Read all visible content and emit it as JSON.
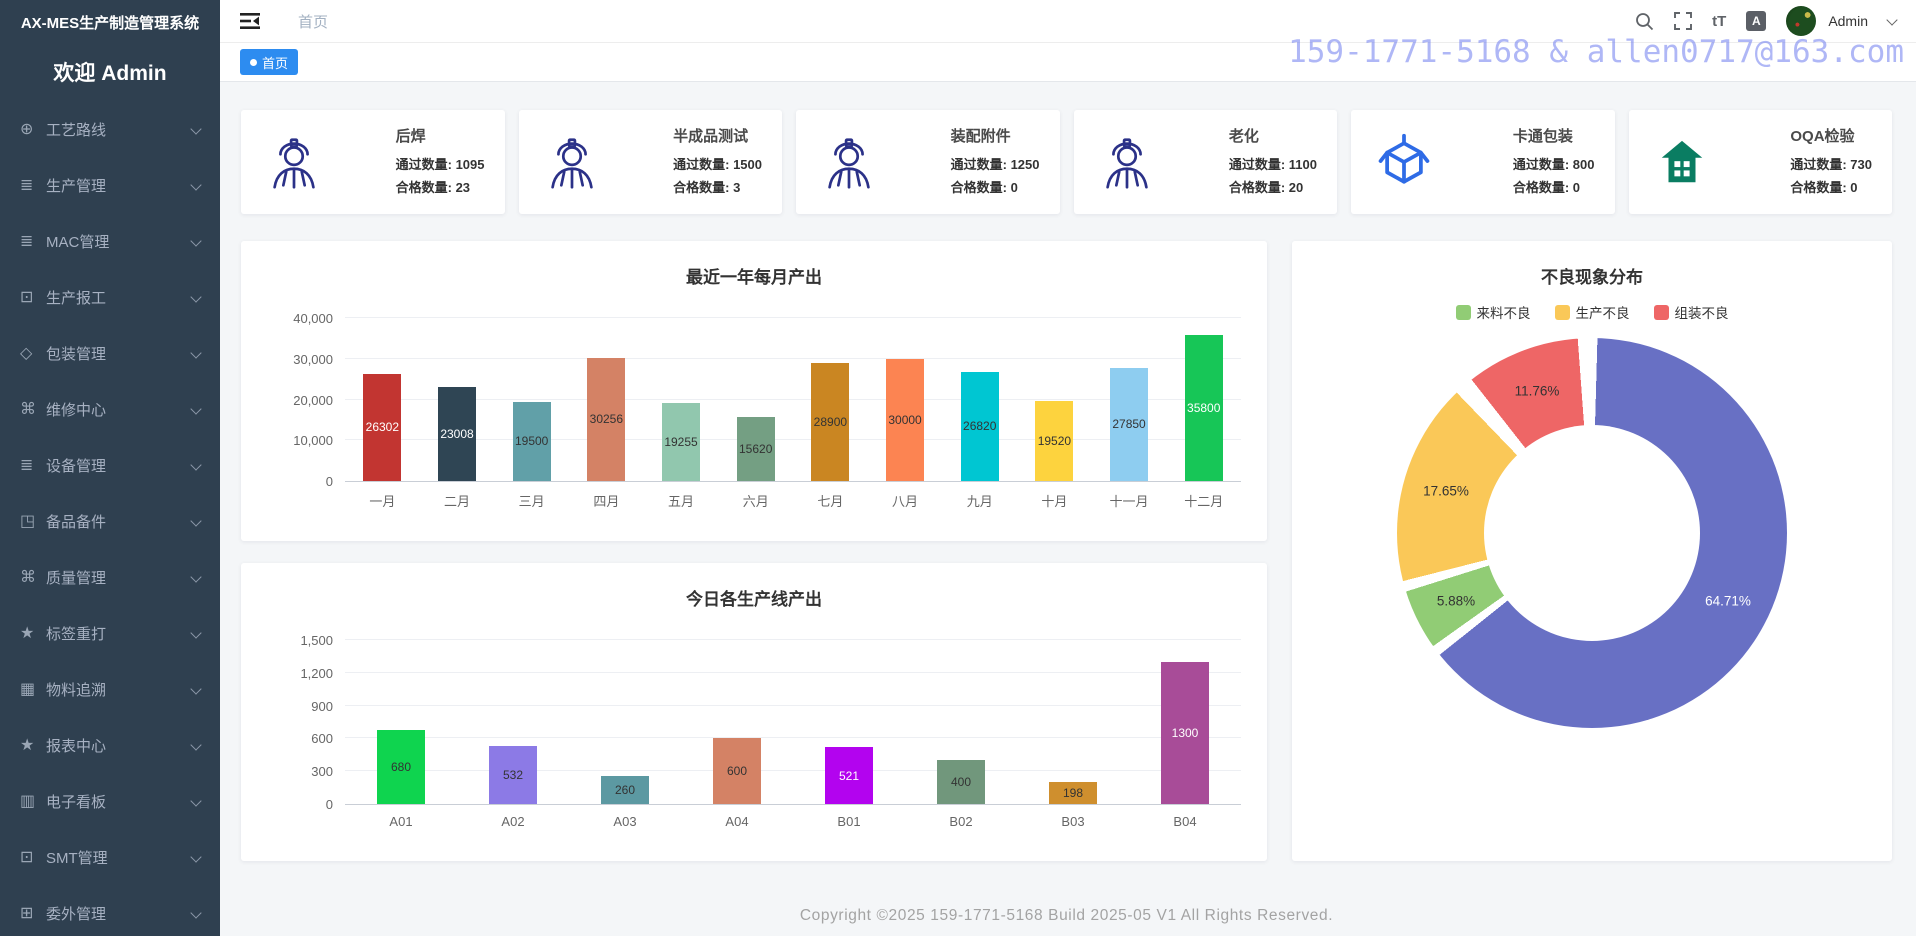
{
  "sidebar": {
    "title": "AX-MES生产制造管理系统",
    "welcome": "欢迎 Admin",
    "items": [
      {
        "id": "process-route",
        "label": "工艺路线",
        "glyph": "⊕"
      },
      {
        "id": "production-mgmt",
        "label": "生产管理",
        "glyph": "≣"
      },
      {
        "id": "mac-mgmt",
        "label": "MAC管理",
        "glyph": "≣"
      },
      {
        "id": "production-report",
        "label": "生产报工",
        "glyph": "⊡"
      },
      {
        "id": "packaging-mgmt",
        "label": "包装管理",
        "glyph": "◇"
      },
      {
        "id": "repair-center",
        "label": "维修中心",
        "glyph": "⌘"
      },
      {
        "id": "equipment-mgmt",
        "label": "设备管理",
        "glyph": "≣"
      },
      {
        "id": "spare-parts",
        "label": "备品备件",
        "glyph": "◳"
      },
      {
        "id": "quality-mgmt",
        "label": "质量管理",
        "glyph": "⌘"
      },
      {
        "id": "label-reprint",
        "label": "标签重打",
        "glyph": "★"
      },
      {
        "id": "material-trace",
        "label": "物料追溯",
        "glyph": "▦"
      },
      {
        "id": "report-center",
        "label": "报表中心",
        "glyph": "★"
      },
      {
        "id": "e-dashboard",
        "label": "电子看板",
        "glyph": "▥"
      },
      {
        "id": "smt-mgmt",
        "label": "SMT管理",
        "glyph": "⊡"
      },
      {
        "id": "outsourcing-mgmt",
        "label": "委外管理",
        "glyph": "⊞"
      }
    ]
  },
  "navbar": {
    "breadcrumb": "首页",
    "font_size_icon_glyph": "tT",
    "language_icon_glyph": "A",
    "user": "Admin"
  },
  "tabbar": {
    "active_tab": "首页"
  },
  "watermark": "159-1771-5168 & allen0717@163.com",
  "kpi_cards": [
    {
      "id": "houhan",
      "title": "后焊",
      "icon": "worker",
      "stats": [
        {
          "label": "通过数量",
          "value": "1095"
        },
        {
          "label": "合格数量",
          "value": "23"
        }
      ]
    },
    {
      "id": "semi-test",
      "title": "半成品测试",
      "icon": "worker",
      "stats": [
        {
          "label": "通过数量",
          "value": "1500"
        },
        {
          "label": "合格数量",
          "value": "3"
        }
      ]
    },
    {
      "id": "assembly",
      "title": "装配附件",
      "icon": "worker",
      "stats": [
        {
          "label": "通过数量",
          "value": "1250"
        },
        {
          "label": "合格数量",
          "value": "0"
        }
      ]
    },
    {
      "id": "aging",
      "title": "老化",
      "icon": "worker",
      "stats": [
        {
          "label": "通过数量",
          "value": "1100"
        },
        {
          "label": "合格数量",
          "value": "20"
        }
      ]
    },
    {
      "id": "carton-pack",
      "title": "卡通包装",
      "icon": "box",
      "stats": [
        {
          "label": "通过数量",
          "value": "800"
        },
        {
          "label": "合格数量",
          "value": "0"
        }
      ]
    },
    {
      "id": "oqa",
      "title": "OQA检验",
      "icon": "factory",
      "stats": [
        {
          "label": "通过数量",
          "value": "730"
        },
        {
          "label": "合格数量",
          "value": "0"
        }
      ]
    }
  ],
  "chart_data": [
    {
      "type": "bar",
      "title": "最近一年每月产出",
      "categories": [
        "一月",
        "二月",
        "三月",
        "四月",
        "五月",
        "六月",
        "七月",
        "八月",
        "九月",
        "十月",
        "十一月",
        "十二月"
      ],
      "values": [
        26302,
        23008,
        19500,
        30256,
        19255,
        15620,
        28900,
        30000,
        26820,
        19520,
        27850,
        35800
      ],
      "colors": [
        "#c23531",
        "#2f4554",
        "#61a0a8",
        "#d48265",
        "#91c7ae",
        "#749f83",
        "#ca8622",
        "#fc8452",
        "#00c6d2",
        "#fdd33e",
        "#8ecdf0",
        "#17c657"
      ],
      "label_colors": [
        "#ffffff",
        "#ffffff",
        "#333333",
        "#333333",
        "#333333",
        "#333333",
        "#333333",
        "#333333",
        "#333333",
        "#333333",
        "#333333",
        "#ffffff"
      ],
      "ylim": [
        0,
        40000
      ],
      "yticks": [
        {
          "value": 0,
          "label": "0"
        },
        {
          "value": 10000,
          "label": "10,000"
        },
        {
          "value": 20000,
          "label": "20,000"
        },
        {
          "value": 30000,
          "label": "30,000"
        },
        {
          "value": 40000,
          "label": "40,000"
        }
      ],
      "grid": true,
      "legend_position": "none"
    },
    {
      "type": "bar",
      "title": "今日各生产线产出",
      "categories": [
        "A01",
        "A02",
        "A03",
        "A04",
        "B01",
        "B02",
        "B03",
        "B04"
      ],
      "values": [
        680,
        532,
        260,
        600,
        521,
        400,
        198,
        1300
      ],
      "colors": [
        "#0fd44f",
        "#8c7ae6",
        "#5c99a2",
        "#d48265",
        "#b303ef",
        "#71977c",
        "#cf8f2e",
        "#a84c98"
      ],
      "label_colors": [
        "#333333",
        "#333333",
        "#333333",
        "#333333",
        "#ffffff",
        "#333333",
        "#333333",
        "#ffffff"
      ],
      "ylim": [
        0,
        1500
      ],
      "yticks": [
        {
          "value": 0,
          "label": "0"
        },
        {
          "value": 300,
          "label": "300"
        },
        {
          "value": 600,
          "label": "600"
        },
        {
          "value": 900,
          "label": "900"
        },
        {
          "value": 1200,
          "label": "1,200"
        },
        {
          "value": 1500,
          "label": "1,500"
        }
      ],
      "grid": true,
      "legend_position": "none"
    },
    {
      "type": "donut",
      "title": "不良现象分布",
      "legend": [
        {
          "label": "来料不良",
          "color": "#91cc75"
        },
        {
          "label": "生产不良",
          "color": "#fac858"
        },
        {
          "label": "组装不良",
          "color": "#ee6666"
        }
      ],
      "legend_position": "top",
      "slices": [
        {
          "name": "",
          "value": 64.71,
          "label": "64.71%",
          "color": "#6870c4",
          "label_color": "#ffffff"
        },
        {
          "name": "来料不良",
          "value": 5.88,
          "label": "5.88%",
          "color": "#91cc75",
          "label_color": "#333333"
        },
        {
          "name": "生产不良",
          "value": 17.65,
          "label": "17.65%",
          "color": "#fac858",
          "label_color": "#333333"
        },
        {
          "name": "组装不良",
          "value": 11.76,
          "label": "11.76%",
          "color": "#ee6666",
          "label_color": "#333333"
        }
      ]
    }
  ],
  "footer": "Copyright ©2025 159-1771-5168 Build 2025-05 V1 All Rights Reserved.",
  "colors": {
    "sidebar_bg": "#2f4050",
    "active_tab": "#2d8cf0",
    "watermark": "#7683f0",
    "worker_icon": "#2b3188",
    "box_icon": "#2e6be6",
    "factory_icon": "#0a7d62"
  }
}
